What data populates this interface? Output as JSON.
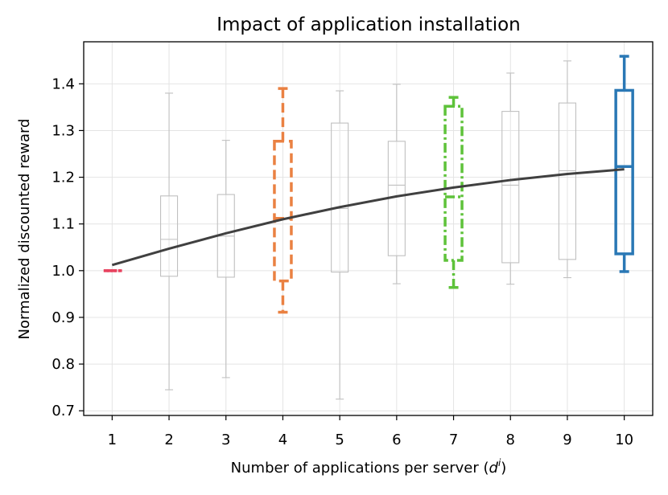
{
  "chart_data": {
    "type": "box",
    "title": "Impact of application installation",
    "xlabel_prefix": "Number of applications per server (",
    "xlabel_var": "d",
    "xlabel_sup": "i",
    "xlabel_suffix": ")",
    "ylabel": "Normalized discounted reward",
    "ylim": [
      0.69,
      1.49
    ],
    "yticks": [
      0.7,
      0.8,
      0.9,
      1.0,
      1.1,
      1.2,
      1.3,
      1.4
    ],
    "ytick_labels": [
      "0.7",
      "0.8",
      "0.9",
      "1.0",
      "1.1",
      "1.2",
      "1.3",
      "1.4"
    ],
    "xlim": [
      0.5,
      10.5
    ],
    "categories": [
      "1",
      "2",
      "3",
      "4",
      "5",
      "6",
      "7",
      "8",
      "9",
      "10"
    ],
    "grid": true,
    "boxes": [
      {
        "x": 1,
        "whislo": 1.0,
        "q1": 1.0,
        "med": 1.0,
        "q3": 1.0,
        "whishi": 1.0,
        "color": "#e8435f",
        "highlight": true,
        "dash": "6,3"
      },
      {
        "x": 2,
        "whislo": 0.745,
        "q1": 0.988,
        "med": 1.067,
        "q3": 1.16,
        "whishi": 1.38,
        "color": "#c0c0c0",
        "highlight": false,
        "dash": ""
      },
      {
        "x": 3,
        "whislo": 0.771,
        "q1": 0.986,
        "med": 1.074,
        "q3": 1.163,
        "whishi": 1.279,
        "color": "#c0c0c0",
        "highlight": false,
        "dash": ""
      },
      {
        "x": 4,
        "whislo": 0.911,
        "q1": 0.978,
        "med": 1.112,
        "q3": 1.277,
        "whishi": 1.39,
        "color": "#ea8142",
        "highlight": true,
        "dash": "12,6"
      },
      {
        "x": 5,
        "whislo": 0.725,
        "q1": 0.997,
        "med": 1.133,
        "q3": 1.316,
        "whishi": 1.385,
        "color": "#c0c0c0",
        "highlight": false,
        "dash": ""
      },
      {
        "x": 6,
        "whislo": 0.972,
        "q1": 1.032,
        "med": 1.183,
        "q3": 1.277,
        "whishi": 1.399,
        "color": "#c0c0c0",
        "highlight": false,
        "dash": ""
      },
      {
        "x": 7,
        "whislo": 0.964,
        "q1": 1.022,
        "med": 1.158,
        "q3": 1.352,
        "whishi": 1.371,
        "color": "#5ec23a",
        "highlight": true,
        "dash": "12,4,3,4"
      },
      {
        "x": 8,
        "whislo": 0.971,
        "q1": 1.017,
        "med": 1.183,
        "q3": 1.341,
        "whishi": 1.423,
        "color": "#c0c0c0",
        "highlight": false,
        "dash": ""
      },
      {
        "x": 9,
        "whislo": 0.985,
        "q1": 1.024,
        "med": 1.214,
        "q3": 1.359,
        "whishi": 1.449,
        "color": "#c0c0c0",
        "highlight": false,
        "dash": ""
      },
      {
        "x": 10,
        "whislo": 0.998,
        "q1": 1.036,
        "med": 1.223,
        "q3": 1.386,
        "whishi": 1.459,
        "color": "#2a78b5",
        "highlight": true,
        "dash": ""
      }
    ],
    "trend_line": {
      "color": "#404040",
      "x": [
        1,
        2,
        3,
        4,
        5,
        6,
        7,
        8,
        9,
        10
      ],
      "y": [
        1.012,
        1.047,
        1.08,
        1.11,
        1.136,
        1.159,
        1.178,
        1.194,
        1.207,
        1.217
      ]
    }
  }
}
